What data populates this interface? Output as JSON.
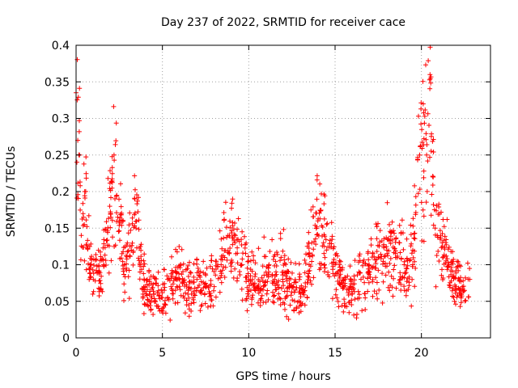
{
  "chart_data": {
    "type": "scatter",
    "title": "Day 237 of 2022, SRMTID for receiver cace",
    "xlabel": "GPS time / hours",
    "ylabel": "SRMTID / TECUs",
    "xlim": [
      0,
      24
    ],
    "ylim": [
      0,
      0.4
    ],
    "xticks": [
      0,
      5,
      10,
      15,
      20
    ],
    "xtick_labels": [
      "0",
      "5",
      "10",
      "15",
      "20"
    ],
    "yticks": [
      0,
      0.05,
      0.1,
      0.15,
      0.2,
      0.25,
      0.3,
      0.35,
      0.4
    ],
    "ytick_labels": [
      "0",
      "0.05",
      "0.1",
      "0.15",
      "0.2",
      "0.25",
      "0.3",
      "0.35",
      "0.4"
    ],
    "grid": true,
    "marker": "plus",
    "marker_color": "#ff0000",
    "envelope_points": [
      {
        "x": 0.0,
        "y": 0.335
      },
      {
        "x": 0.1,
        "y": 0.27
      },
      {
        "x": 0.2,
        "y": 0.25
      },
      {
        "x": 0.3,
        "y": 0.14
      },
      {
        "x": 0.5,
        "y": 0.2
      },
      {
        "x": 0.8,
        "y": 0.1
      },
      {
        "x": 1.0,
        "y": 0.08
      },
      {
        "x": 1.3,
        "y": 0.09
      },
      {
        "x": 1.6,
        "y": 0.1
      },
      {
        "x": 2.0,
        "y": 0.17
      },
      {
        "x": 2.2,
        "y": 0.25
      },
      {
        "x": 2.5,
        "y": 0.16
      },
      {
        "x": 2.8,
        "y": 0.1
      },
      {
        "x": 3.2,
        "y": 0.12
      },
      {
        "x": 3.4,
        "y": 0.19
      },
      {
        "x": 3.7,
        "y": 0.1
      },
      {
        "x": 4.0,
        "y": 0.07
      },
      {
        "x": 4.5,
        "y": 0.06
      },
      {
        "x": 5.0,
        "y": 0.055
      },
      {
        "x": 5.5,
        "y": 0.07
      },
      {
        "x": 6.0,
        "y": 0.08
      },
      {
        "x": 6.5,
        "y": 0.065
      },
      {
        "x": 7.0,
        "y": 0.08
      },
      {
        "x": 7.5,
        "y": 0.07
      },
      {
        "x": 8.0,
        "y": 0.07
      },
      {
        "x": 8.4,
        "y": 0.1
      },
      {
        "x": 8.8,
        "y": 0.14
      },
      {
        "x": 9.2,
        "y": 0.13
      },
      {
        "x": 9.6,
        "y": 0.1
      },
      {
        "x": 10.0,
        "y": 0.08
      },
      {
        "x": 10.5,
        "y": 0.07
      },
      {
        "x": 11.0,
        "y": 0.09
      },
      {
        "x": 11.5,
        "y": 0.08
      },
      {
        "x": 12.0,
        "y": 0.09
      },
      {
        "x": 12.5,
        "y": 0.07
      },
      {
        "x": 13.0,
        "y": 0.06
      },
      {
        "x": 13.5,
        "y": 0.1
      },
      {
        "x": 14.0,
        "y": 0.16
      },
      {
        "x": 14.5,
        "y": 0.12
      },
      {
        "x": 15.0,
        "y": 0.1
      },
      {
        "x": 15.5,
        "y": 0.07
      },
      {
        "x": 16.0,
        "y": 0.06
      },
      {
        "x": 16.5,
        "y": 0.08
      },
      {
        "x": 17.0,
        "y": 0.09
      },
      {
        "x": 17.5,
        "y": 0.11
      },
      {
        "x": 18.0,
        "y": 0.12
      },
      {
        "x": 18.5,
        "y": 0.11
      },
      {
        "x": 19.0,
        "y": 0.1
      },
      {
        "x": 19.5,
        "y": 0.12
      },
      {
        "x": 19.9,
        "y": 0.25
      },
      {
        "x": 20.3,
        "y": 0.25
      },
      {
        "x": 20.5,
        "y": 0.36
      },
      {
        "x": 20.8,
        "y": 0.15
      },
      {
        "x": 21.2,
        "y": 0.13
      },
      {
        "x": 21.6,
        "y": 0.1
      },
      {
        "x": 22.0,
        "y": 0.07
      },
      {
        "x": 22.5,
        "y": 0.065
      },
      {
        "x": 22.8,
        "y": 0.08
      }
    ]
  }
}
